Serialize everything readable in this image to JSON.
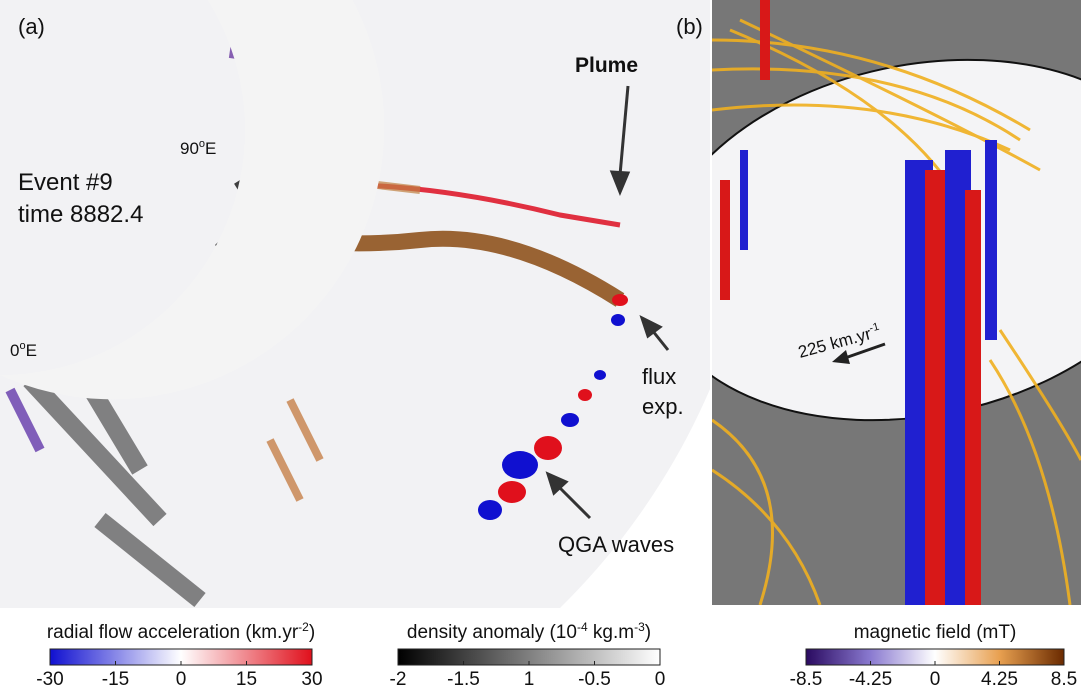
{
  "panel_a": {
    "label": "(a)",
    "event": "Event #9",
    "time": "time 8882.4",
    "lon_90": {
      "num": "90",
      "sup": "o",
      "unit": "E"
    },
    "lon_0": {
      "num": "0",
      "sup": "o",
      "unit": "E"
    },
    "plume": "Plume",
    "flux": "flux",
    "flux_2": "exp.",
    "waves": "QGA waves"
  },
  "panel_b": {
    "label": "(b)",
    "speed": {
      "text": "225 km.yr",
      "sup": "-1"
    }
  },
  "colorbars": [
    {
      "label": {
        "text": "radial flow acceleration (km.yr",
        "sup": "-2",
        "end": ")"
      },
      "ticks": [
        "-30",
        "-15",
        "0",
        "15",
        "30"
      ]
    },
    {
      "label": {
        "text": "density anomaly (10",
        "sup": "-4",
        "end": " kg.m",
        "sup2": "-3",
        "end2": ")"
      },
      "ticks": [
        "-2",
        "-1.5",
        "1",
        "-0.5",
        "0"
      ]
    },
    {
      "label": {
        "text": "magnetic field (mT)"
      },
      "ticks": [
        "-8.5",
        "-4.25",
        "0",
        "4.25",
        "8.5"
      ]
    }
  ]
}
